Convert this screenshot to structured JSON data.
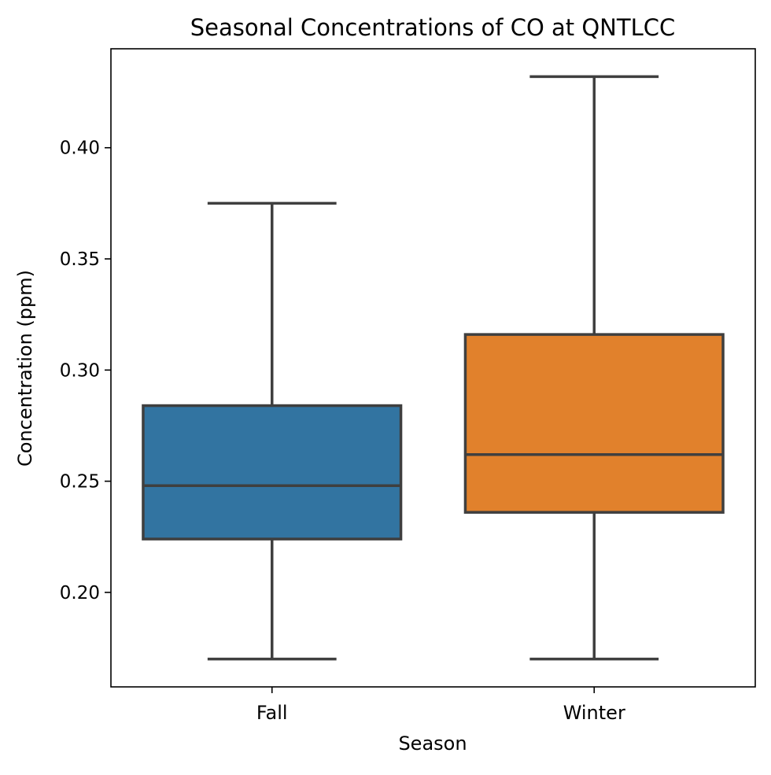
{
  "chart_data": {
    "type": "box",
    "title": "Seasonal Concentrations of CO at QNTLCC",
    "xlabel": "Season",
    "ylabel": "Concentration (ppm)",
    "categories": [
      "Fall",
      "Winter"
    ],
    "yticks": [
      "0.20",
      "0.25",
      "0.30",
      "0.35",
      "0.40"
    ],
    "ylim": [
      0.1575,
      0.4445
    ],
    "grid": false,
    "boxes": [
      {
        "category": "Fall",
        "whisker_low": 0.17,
        "q1": 0.224,
        "median": 0.248,
        "q3": 0.284,
        "whisker_high": 0.375,
        "color": "#3274a1"
      },
      {
        "category": "Winter",
        "whisker_low": 0.17,
        "q1": 0.236,
        "median": 0.262,
        "q3": 0.316,
        "whisker_high": 0.432,
        "color": "#e1812c"
      }
    ],
    "line_color": "#3f3f3f"
  }
}
